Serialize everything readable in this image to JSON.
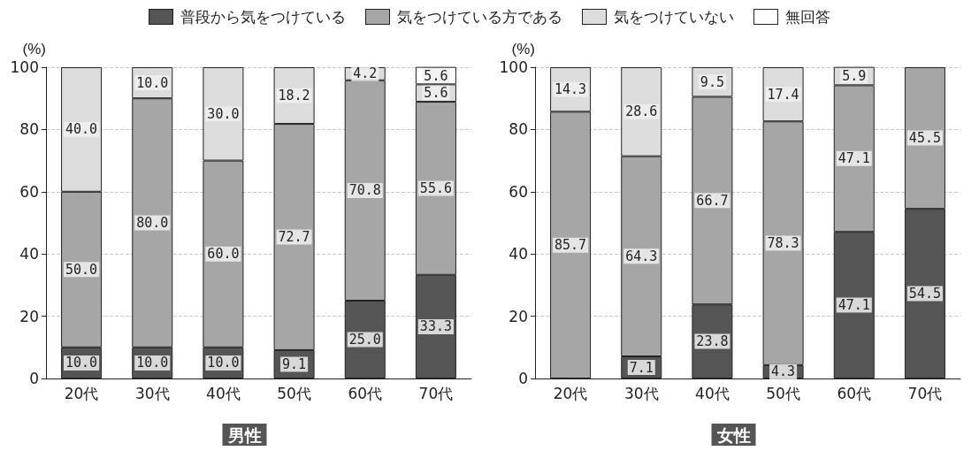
{
  "chart_data": [
    {
      "type": "bar",
      "title": "男性",
      "ylabel": "(%)",
      "stacked": true,
      "grid": "y",
      "legend": "top",
      "categories": [
        "20代",
        "30代",
        "40代",
        "50代",
        "60代",
        "70代"
      ],
      "ylim": [
        0,
        100
      ],
      "yticks": [
        0,
        20,
        40,
        60,
        80,
        100
      ],
      "series": [
        {
          "name": "普段から気をつけている",
          "color": "#555555",
          "values": [
            10.0,
            10.0,
            10.0,
            9.1,
            25.0,
            33.3
          ],
          "value_labels": [
            "10.0",
            "10.0",
            "10.0",
            "9.1",
            "25.0",
            "33.3"
          ]
        },
        {
          "name": "気をつけている方である",
          "color": "#a6a6a6",
          "values": [
            50.0,
            80.0,
            60.0,
            72.7,
            70.8,
            55.6
          ],
          "value_labels": [
            "50.0",
            "80.0",
            "60.0",
            "72.7",
            "70.8",
            "55.6"
          ]
        },
        {
          "name": "気をつけていない",
          "color": "#dcdcdc",
          "values": [
            40.0,
            10.0,
            30.0,
            18.2,
            4.2,
            5.6
          ],
          "value_labels": [
            "40.0",
            "10.0",
            "30.0",
            "18.2",
            "4.2",
            "5.6"
          ]
        },
        {
          "name": "無回答",
          "color": "#ffffff",
          "values": [
            null,
            null,
            null,
            null,
            null,
            5.6
          ],
          "value_labels": [
            null,
            null,
            null,
            null,
            null,
            "5.6"
          ]
        }
      ]
    },
    {
      "type": "bar",
      "title": "女性",
      "ylabel": "(%)",
      "stacked": true,
      "grid": "y",
      "categories": [
        "20代",
        "30代",
        "40代",
        "50代",
        "60代",
        "70代"
      ],
      "ylim": [
        0,
        100
      ],
      "yticks": [
        0,
        20,
        40,
        60,
        80,
        100
      ],
      "series": [
        {
          "color": "#555555",
          "values": [
            null,
            7.1,
            23.8,
            4.3,
            47.1,
            54.5
          ],
          "value_labels": [
            null,
            "7.1",
            "23.8",
            "4.3",
            "47.1",
            "54.5"
          ]
        },
        {
          "color": "#a6a6a6",
          "values": [
            85.7,
            64.3,
            66.7,
            78.3,
            47.1,
            45.5
          ],
          "value_labels": [
            "85.7",
            "64.3",
            "66.7",
            "78.3",
            "47.1",
            "45.5"
          ]
        },
        {
          "color": "#dcdcdc",
          "values": [
            14.3,
            28.6,
            9.5,
            17.4,
            5.9,
            null
          ],
          "value_labels": [
            "14.3",
            "28.6",
            "9.5",
            "17.4",
            "5.9",
            null
          ]
        }
      ]
    }
  ]
}
